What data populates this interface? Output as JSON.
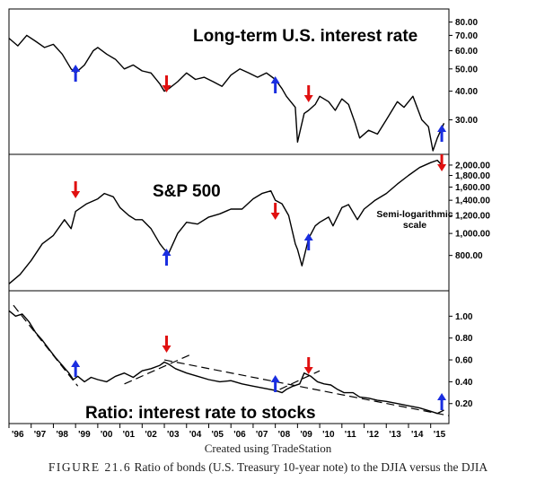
{
  "chart_data": [
    {
      "type": "line",
      "title": "Long-term U.S. interest rate",
      "x_range": [
        1996,
        2015.7
      ],
      "y_scale": "log",
      "ylim": [
        22,
        88
      ],
      "y_ticks": [
        80,
        70,
        60,
        50,
        40,
        30
      ],
      "y_tick_labels": [
        "80.00",
        "70.00",
        "60.00",
        "50.00",
        "40.00",
        "30.00"
      ],
      "series": [
        {
          "x": [
            1996.0,
            1996.4,
            1996.8,
            1997.2,
            1997.6,
            1998.0,
            1998.4,
            1998.8,
            1999.0,
            1999.4,
            1999.8,
            2000.0,
            2000.4,
            2000.8,
            2001.2,
            2001.6,
            2002.0,
            2002.4,
            2002.8,
            2003.0,
            2003.2,
            2003.6,
            2004.0,
            2004.4,
            2004.8,
            2005.2,
            2005.6,
            2006.0,
            2006.4,
            2006.8,
            2007.2,
            2007.6,
            2008.0,
            2008.3,
            2008.5,
            2008.9,
            2009.0,
            2009.3,
            2009.5,
            2009.8,
            2010.0,
            2010.4,
            2010.7,
            2011.0,
            2011.3,
            2011.6,
            2011.8,
            2012.2,
            2012.6,
            2013.0,
            2013.5,
            2013.8,
            2014.2,
            2014.6,
            2014.9,
            2015.1,
            2015.3,
            2015.6
          ],
          "values": [
            68,
            63,
            70,
            66,
            62,
            64,
            58,
            50,
            48,
            52,
            60,
            62,
            58,
            55,
            50,
            52,
            49,
            48,
            43,
            40,
            41,
            44,
            48,
            45,
            46,
            44,
            42,
            47,
            50,
            48,
            46,
            48,
            45,
            41,
            38,
            34,
            24,
            32,
            33,
            35,
            38,
            36,
            33,
            37,
            35,
            29,
            25,
            27,
            26,
            30,
            36,
            34,
            38,
            30,
            28,
            22,
            25,
            29
          ]
        }
      ],
      "annotations": [
        {
          "x": 1999.0,
          "direction": "up",
          "color": "#1a2ee0"
        },
        {
          "x": 2003.1,
          "direction": "down",
          "color": "#e01010"
        },
        {
          "x": 2008.0,
          "direction": "up",
          "color": "#1a2ee0"
        },
        {
          "x": 2009.5,
          "direction": "down",
          "color": "#e01010"
        },
        {
          "x": 2015.5,
          "direction": "up",
          "color": "#1a2ee0"
        }
      ]
    },
    {
      "type": "line",
      "title": "S&P 500",
      "annotation_text": [
        "Semi-logarithmic",
        "scale"
      ],
      "x_range": [
        1996,
        2015.7
      ],
      "y_scale": "log",
      "ylim": [
        580,
        2150
      ],
      "y_ticks": [
        2000,
        1800,
        1600,
        1400,
        1200,
        1000,
        800
      ],
      "y_tick_labels": [
        "2,000.00",
        "1,800.00",
        "1,600.00",
        "1,400.00",
        "1,200.00",
        "1,000.00",
        "800.00"
      ],
      "series": [
        {
          "x": [
            1996.0,
            1996.5,
            1997.0,
            1997.5,
            1998.0,
            1998.5,
            1998.8,
            1999.0,
            1999.5,
            2000.0,
            2000.3,
            2000.7,
            2001.0,
            2001.4,
            2001.7,
            2002.0,
            2002.4,
            2002.8,
            2003.0,
            2003.2,
            2003.6,
            2004.0,
            2004.5,
            2005.0,
            2005.5,
            2006.0,
            2006.5,
            2007.0,
            2007.4,
            2007.8,
            2008.0,
            2008.3,
            2008.6,
            2008.9,
            2009.0,
            2009.2,
            2009.5,
            2009.8,
            2010.0,
            2010.4,
            2010.6,
            2011.0,
            2011.3,
            2011.7,
            2012.0,
            2012.5,
            2013.0,
            2013.5,
            2014.0,
            2014.5,
            2015.0,
            2015.3,
            2015.6
          ],
          "values": [
            600,
            660,
            760,
            900,
            980,
            1150,
            1050,
            1250,
            1350,
            1420,
            1500,
            1450,
            1300,
            1200,
            1150,
            1150,
            1050,
            900,
            850,
            820,
            1000,
            1120,
            1100,
            1180,
            1220,
            1280,
            1280,
            1420,
            1500,
            1540,
            1400,
            1350,
            1200,
            900,
            850,
            720,
            950,
            1080,
            1120,
            1180,
            1080,
            1300,
            1340,
            1150,
            1280,
            1400,
            1500,
            1650,
            1800,
            1950,
            2050,
            2100,
            1950
          ]
        }
      ],
      "annotations": [
        {
          "x": 1999.0,
          "direction": "down",
          "color": "#e01010"
        },
        {
          "x": 2003.1,
          "direction": "up",
          "color": "#1a2ee0"
        },
        {
          "x": 2008.0,
          "direction": "down",
          "color": "#e01010"
        },
        {
          "x": 2009.5,
          "direction": "up",
          "color": "#1a2ee0"
        },
        {
          "x": 2015.5,
          "direction": "down",
          "color": "#e01010"
        }
      ]
    },
    {
      "type": "line",
      "title": "Ratio: interest rate to stocks",
      "x_range": [
        1996,
        2015.7
      ],
      "ylim": [
        0.05,
        1.2
      ],
      "y_ticks": [
        1.0,
        0.8,
        0.6,
        0.4,
        0.2
      ],
      "y_tick_labels": [
        "1.00",
        "0.80",
        "0.60",
        "0.40",
        "0.20"
      ],
      "xlabel_ticks": [
        "'96",
        "'97",
        "'98",
        "'99",
        "'00",
        "'01",
        "'02",
        "'03",
        "'04",
        "'05",
        "'06",
        "'07",
        "'08",
        "'09",
        "'10",
        "'11",
        "'12",
        "'13",
        "'14",
        "'15"
      ],
      "series": [
        {
          "x": [
            1996.0,
            1996.3,
            1996.6,
            1996.9,
            1997.2,
            1997.5,
            1997.8,
            1998.1,
            1998.4,
            1998.7,
            1998.9,
            1999.1,
            1999.4,
            1999.7,
            2000.0,
            2000.4,
            2000.8,
            2001.2,
            2001.6,
            2002.0,
            2002.4,
            2002.8,
            2003.0,
            2003.2,
            2003.5,
            2004.0,
            2004.5,
            2005.0,
            2005.5,
            2006.0,
            2006.5,
            2007.0,
            2007.5,
            2008.0,
            2008.3,
            2008.5,
            2008.8,
            2009.1,
            2009.3,
            2009.6,
            2009.9,
            2010.2,
            2010.5,
            2010.8,
            2011.1,
            2011.5,
            2011.8,
            2012.2,
            2012.6,
            2013.0,
            2013.5,
            2014.0,
            2014.5,
            2015.0,
            2015.3,
            2015.6
          ],
          "values": [
            1.05,
            1.0,
            1.02,
            0.95,
            0.85,
            0.78,
            0.7,
            0.62,
            0.55,
            0.48,
            0.42,
            0.45,
            0.4,
            0.44,
            0.42,
            0.4,
            0.45,
            0.48,
            0.44,
            0.5,
            0.52,
            0.55,
            0.58,
            0.56,
            0.52,
            0.48,
            0.45,
            0.42,
            0.4,
            0.41,
            0.38,
            0.36,
            0.34,
            0.32,
            0.3,
            0.33,
            0.36,
            0.38,
            0.48,
            0.45,
            0.4,
            0.38,
            0.37,
            0.33,
            0.3,
            0.3,
            0.26,
            0.25,
            0.23,
            0.22,
            0.2,
            0.18,
            0.16,
            0.13,
            0.11,
            0.14
          ]
        }
      ],
      "trendlines": [
        {
          "x": [
            1996.2,
            1999.1
          ],
          "values": [
            1.1,
            0.36
          ]
        },
        {
          "x": [
            2001.2,
            2004.2
          ],
          "values": [
            0.38,
            0.65
          ]
        },
        {
          "x": [
            2003.0,
            2015.8
          ],
          "values": [
            0.6,
            0.09
          ]
        },
        {
          "x": [
            2008.2,
            2010.0
          ],
          "values": [
            0.33,
            0.5
          ]
        }
      ],
      "annotations": [
        {
          "x": 1999.0,
          "direction": "up",
          "color": "#1a2ee0"
        },
        {
          "x": 2003.1,
          "direction": "down",
          "color": "#e01010"
        },
        {
          "x": 2008.0,
          "direction": "up",
          "color": "#1a2ee0"
        },
        {
          "x": 2009.5,
          "direction": "down",
          "color": "#e01010"
        },
        {
          "x": 2015.5,
          "direction": "up",
          "color": "#1a2ee0"
        }
      ]
    }
  ],
  "credit": "Created using TradeStation",
  "caption": {
    "label": "FIGURE 21.6",
    "text": "Ratio of bonds (U.S. Treasury 10-year note) to the DJIA versus the DJIA"
  },
  "colors": {
    "line": "#000000",
    "up_arrow": "#1a2ee0",
    "down_arrow": "#e01010"
  }
}
